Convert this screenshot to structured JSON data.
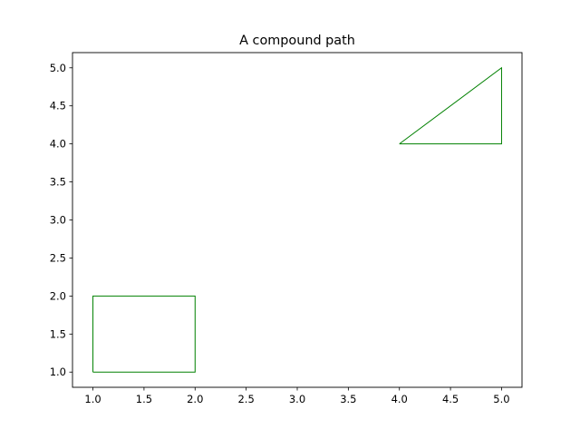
{
  "chart_data": {
    "type": "line",
    "title": "A compound path",
    "xlabel": "",
    "ylabel": "",
    "xlim": [
      0.8,
      5.2
    ],
    "ylim": [
      0.8,
      5.2
    ],
    "xticks": [
      "1.0",
      "1.5",
      "2.0",
      "2.5",
      "3.0",
      "3.5",
      "4.0",
      "4.5",
      "5.0"
    ],
    "yticks": [
      "1.0",
      "1.5",
      "2.0",
      "2.5",
      "3.0",
      "3.5",
      "4.0",
      "4.5",
      "5.0"
    ],
    "grid": false,
    "color": "#008000",
    "paths": [
      {
        "shape": "rectangle",
        "points": [
          [
            1,
            1
          ],
          [
            2,
            1
          ],
          [
            2,
            2
          ],
          [
            1,
            2
          ],
          [
            1,
            1
          ]
        ]
      },
      {
        "shape": "triangle",
        "points": [
          [
            4,
            4
          ],
          [
            5,
            4
          ],
          [
            5,
            5
          ],
          [
            4,
            4
          ]
        ]
      }
    ]
  }
}
